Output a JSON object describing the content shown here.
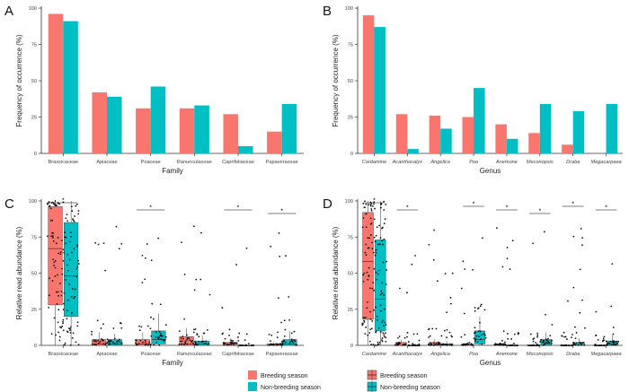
{
  "colors": {
    "breeding": "#F8766D",
    "nonbreeding": "#00BFC4"
  },
  "legend": {
    "breeding": "Breeding season",
    "nonbreeding": "Non-breeding season"
  },
  "chart_data": [
    {
      "panel": "A",
      "type": "bar",
      "categories": [
        "Brassicaceae",
        "Apiaceae",
        "Poaceae",
        "Ranunculaceae",
        "Caprifoliaceae",
        "Papaveraceae"
      ],
      "series": [
        {
          "name": "Breeding season",
          "values": [
            96,
            42,
            31,
            31,
            27,
            15
          ]
        },
        {
          "name": "Non-breeding season",
          "values": [
            91,
            39,
            46,
            33,
            5,
            34
          ]
        }
      ],
      "xlabel": "Family",
      "ylabel": "Frequency of occurrence (%)",
      "ylim": [
        0,
        100
      ],
      "yticks": [
        0,
        25,
        50,
        75,
        100
      ],
      "italic_ticks": false
    },
    {
      "panel": "B",
      "type": "bar",
      "categories": [
        "Cardamine",
        "Acanthocalyx",
        "Angelica",
        "Poa",
        "Anemone",
        "Meconopsis",
        "Draba",
        "Megacarpaea"
      ],
      "series": [
        {
          "name": "Breeding season",
          "values": [
            95,
            27,
            26,
            25,
            20,
            14,
            6,
            0
          ]
        },
        {
          "name": "Non-breeding season",
          "values": [
            87,
            3,
            17,
            45,
            10,
            34,
            29,
            34
          ]
        }
      ],
      "xlabel": "Genus",
      "ylabel": "Frequency of occurrence (%)",
      "ylim": [
        0,
        100
      ],
      "yticks": [
        0,
        25,
        50,
        75,
        100
      ],
      "italic_ticks": true
    },
    {
      "panel": "C",
      "type": "box",
      "categories": [
        "Brassicaceae",
        "Apiaceae",
        "Poaceae",
        "Ranunculaceae",
        "Caprifoliaceae",
        "Papaveraceae"
      ],
      "series": [
        {
          "name": "Breeding season",
          "boxes": [
            {
              "q1": 28,
              "med": 67,
              "q3": 96,
              "lo": 0,
              "hi": 100
            },
            {
              "q1": 0,
              "med": 1,
              "q3": 4,
              "lo": 0,
              "hi": 9
            },
            {
              "q1": 0,
              "med": 1,
              "q3": 4,
              "lo": 0,
              "hi": 9
            },
            {
              "q1": 0,
              "med": 1,
              "q3": 6,
              "lo": 0,
              "hi": 12
            },
            {
              "q1": 0,
              "med": 0,
              "q3": 2,
              "lo": 0,
              "hi": 5
            },
            {
              "q1": 0,
              "med": 0,
              "q3": 1,
              "lo": 0,
              "hi": 2
            }
          ]
        },
        {
          "name": "Non-breeding season",
          "boxes": [
            {
              "q1": 20,
              "med": 48,
              "q3": 85,
              "lo": 0,
              "hi": 100
            },
            {
              "q1": 0,
              "med": 1,
              "q3": 4,
              "lo": 0,
              "hi": 8
            },
            {
              "q1": 1,
              "med": 4,
              "q3": 10,
              "lo": 0,
              "hi": 22
            },
            {
              "q1": 0,
              "med": 1,
              "q3": 3,
              "lo": 0,
              "hi": 7
            },
            {
              "q1": 0,
              "med": 0,
              "q3": 0,
              "lo": 0,
              "hi": 1
            },
            {
              "q1": 0,
              "med": 1,
              "q3": 4,
              "lo": 0,
              "hi": 10
            }
          ]
        }
      ],
      "significant": [
        true,
        false,
        true,
        false,
        true,
        true
      ],
      "xlabel": "Family",
      "ylabel": "Relative read abundance (%)",
      "ylim": [
        0,
        100
      ],
      "yticks": [
        0,
        25,
        50,
        75,
        100
      ],
      "italic_ticks": false
    },
    {
      "panel": "D",
      "type": "box",
      "categories": [
        "Cardamine",
        "Acanthocalyx",
        "Angelica",
        "Poa",
        "Anemone",
        "Meconopsis",
        "Draba",
        "Megacarpaea"
      ],
      "series": [
        {
          "name": "Breeding season",
          "boxes": [
            {
              "q1": 18,
              "med": 58,
              "q3": 92,
              "lo": 0,
              "hi": 100
            },
            {
              "q1": 0,
              "med": 0,
              "q3": 2,
              "lo": 0,
              "hi": 4
            },
            {
              "q1": 0,
              "med": 0,
              "q3": 2,
              "lo": 0,
              "hi": 4
            },
            {
              "q1": 0,
              "med": 0,
              "q3": 1,
              "lo": 0,
              "hi": 2
            },
            {
              "q1": 0,
              "med": 0,
              "q3": 1,
              "lo": 0,
              "hi": 2
            },
            {
              "q1": 0,
              "med": 0,
              "q3": 0,
              "lo": 0,
              "hi": 1
            },
            {
              "q1": 0,
              "med": 0,
              "q3": 0,
              "lo": 0,
              "hi": 1
            },
            {
              "q1": 0,
              "med": 0,
              "q3": 0,
              "lo": 0,
              "hi": 0
            }
          ]
        },
        {
          "name": "Non-breeding season",
          "boxes": [
            {
              "q1": 10,
              "med": 32,
              "q3": 73,
              "lo": 0,
              "hi": 100
            },
            {
              "q1": 0,
              "med": 0,
              "q3": 0,
              "lo": 0,
              "hi": 1
            },
            {
              "q1": 0,
              "med": 0,
              "q3": 1,
              "lo": 0,
              "hi": 3
            },
            {
              "q1": 1,
              "med": 4,
              "q3": 10,
              "lo": 0,
              "hi": 20
            },
            {
              "q1": 0,
              "med": 0,
              "q3": 0,
              "lo": 0,
              "hi": 1
            },
            {
              "q1": 0,
              "med": 0,
              "q3": 4,
              "lo": 0,
              "hi": 9
            },
            {
              "q1": 0,
              "med": 0,
              "q3": 2,
              "lo": 0,
              "hi": 5
            },
            {
              "q1": 0,
              "med": 0,
              "q3": 3,
              "lo": 0,
              "hi": 7
            }
          ]
        }
      ],
      "significant": [
        true,
        true,
        false,
        true,
        true,
        true,
        true,
        true
      ],
      "xlabel": "Genus",
      "ylabel": "Relative read abundance (%)",
      "ylim": [
        0,
        100
      ],
      "yticks": [
        0,
        25,
        50,
        75,
        100
      ],
      "italic_ticks": true
    }
  ]
}
